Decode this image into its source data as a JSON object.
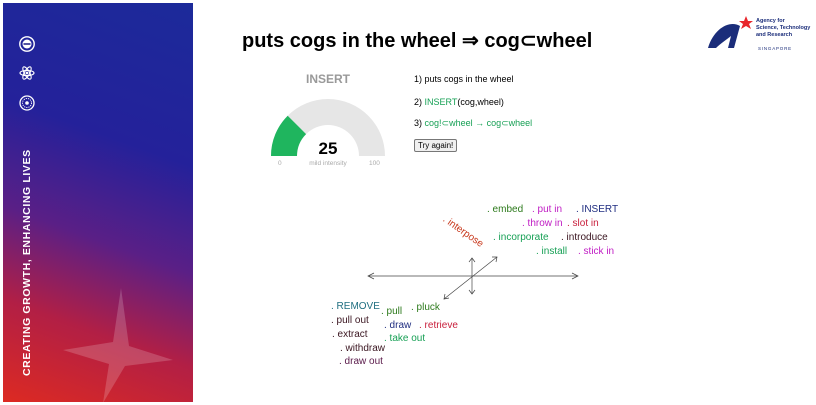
{
  "sidebar": {
    "tagline": "CREATING GROWTH, ENHANCING LIVES",
    "icons": [
      "circle-badge-icon",
      "atom-icon",
      "globe-icon"
    ]
  },
  "header": {
    "headline_prefix": "puts cogs in the wheel ⇒ cog",
    "headline_symbol": "⊂",
    "headline_suffix": "wheel"
  },
  "logo": {
    "line1": "Agency for",
    "line2": "Science, Technology",
    "line3": "and Research",
    "sub": "SINGAPORE",
    "colors": {
      "navy": "#1b2d7a",
      "red": "#e8262b"
    }
  },
  "gauge": {
    "title": "INSERT",
    "value": 25,
    "label": "mild intensity",
    "min": 0,
    "max": 100,
    "fill_color": "#1fb55e",
    "track_color": "#e6e6e6"
  },
  "steps": {
    "s1": "1) puts cogs in the wheel",
    "s2_prefix": "2) ",
    "s2_green": "INSERT",
    "s2_suffix": "(cog,wheel)",
    "s3_prefix": "3) ",
    "s3_green": "cog!⊂wheel → cog⊂wheel"
  },
  "try_button": "Try again!",
  "word_cloud": [
    {
      "text": ". interpose",
      "color": "#c8381c"
    },
    {
      "text": ". embed",
      "color": "#2d7a1c"
    },
    {
      "text": ". put in",
      "color": "#c01dc4"
    },
    {
      "text": ". INSERT",
      "color": "#1f2d80"
    },
    {
      "text": ". throw in",
      "color": "#c01dc4"
    },
    {
      "text": ". slot in",
      "color": "#c81d3a"
    },
    {
      "text": ". incorporate",
      "color": "#17a055"
    },
    {
      "text": ". introduce",
      "color": "#3a1520"
    },
    {
      "text": ". install",
      "color": "#17a055"
    },
    {
      "text": ". stick in",
      "color": "#c01dc4"
    },
    {
      "text": ". REMOVE",
      "color": "#1f6e80"
    },
    {
      "text": ". pull",
      "color": "#2d7a1c"
    },
    {
      "text": ". pluck",
      "color": "#2d7a1c"
    },
    {
      "text": ". pull out",
      "color": "#3a1520"
    },
    {
      "text": ". draw",
      "color": "#1f2d80"
    },
    {
      "text": ". retrieve",
      "color": "#c81d3a"
    },
    {
      "text": ". extract",
      "color": "#3a1520"
    },
    {
      "text": ". take out",
      "color": "#17a055"
    },
    {
      "text": ". withdraw",
      "color": "#3a1520"
    },
    {
      "text": ". draw out",
      "color": "#5a1a4a"
    }
  ]
}
